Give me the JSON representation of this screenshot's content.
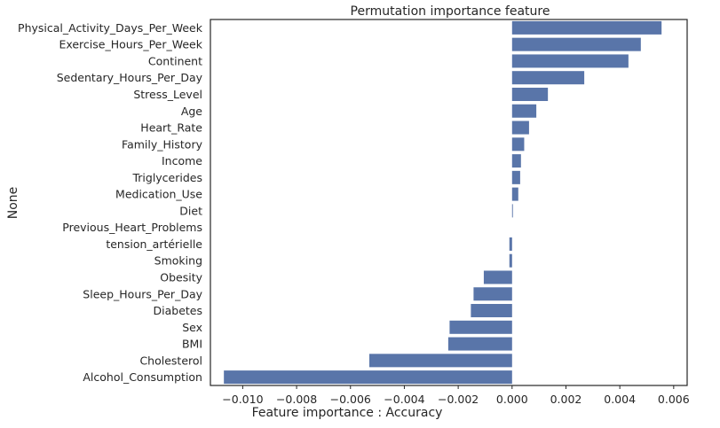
{
  "chart_data": {
    "type": "bar",
    "orientation": "horizontal",
    "title": "Permutation importance feature",
    "xlabel": "Feature importance : Accuracy",
    "ylabel": "None",
    "xlim": [
      -0.0112,
      0.0065
    ],
    "xticks": [
      -0.01,
      -0.008,
      -0.006,
      -0.004,
      -0.002,
      0.0,
      0.002,
      0.004,
      0.006
    ],
    "xtick_labels": [
      "−0.010",
      "−0.008",
      "−0.006",
      "−0.004",
      "−0.002",
      "0.000",
      "0.002",
      "0.004",
      "0.006"
    ],
    "grid": false,
    "bar_color": "#5975a9",
    "categories": [
      "Physical_Activity_Days_Per_Week",
      "Exercise_Hours_Per_Week",
      "Continent",
      "Sedentary_Hours_Per_Day",
      "Stress_Level",
      "Age",
      "Heart_Rate",
      "Family_History",
      "Income",
      "Triglycerides",
      "Medication_Use",
      "Diet",
      "Previous_Heart_Problems",
      "tension_artérielle",
      "Smoking",
      "Obesity",
      "Sleep_Hours_Per_Day",
      "Diabetes",
      "Sex",
      "BMI",
      "Cholesterol",
      "Alcohol_Consumption"
    ],
    "values": [
      0.00555,
      0.00478,
      0.00432,
      0.00268,
      0.00133,
      0.0009,
      0.00063,
      0.00045,
      0.00033,
      0.0003,
      0.00023,
      3e-05,
      0.0,
      -0.0001,
      -0.0001,
      -0.00105,
      -0.00143,
      -0.00153,
      -0.00232,
      -0.00237,
      -0.0053,
      -0.0107
    ]
  }
}
